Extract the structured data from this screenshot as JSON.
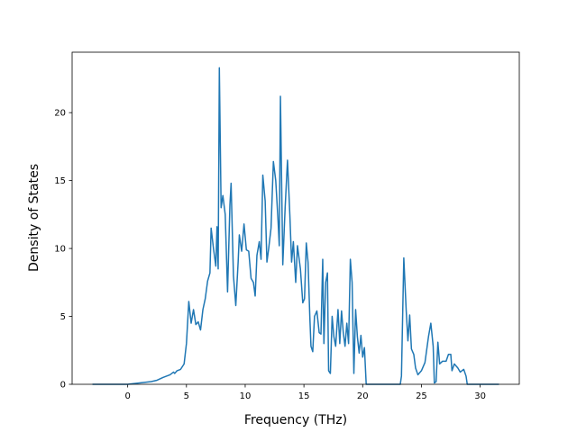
{
  "chart_data": {
    "type": "line",
    "x_label": "Frequency (THz)",
    "y_label": "Density of States",
    "x": [
      -3,
      -2,
      -1,
      0,
      0.5,
      1,
      1.5,
      2,
      2.5,
      3,
      3.3,
      3.6,
      3.9,
      4.0,
      4.2,
      4.5,
      4.8,
      5.0,
      5.2,
      5.4,
      5.6,
      5.8,
      6.0,
      6.2,
      6.4,
      6.6,
      6.8,
      7.0,
      7.1,
      7.3,
      7.5,
      7.6,
      7.7,
      7.8,
      7.95,
      8.1,
      8.3,
      8.5,
      8.7,
      8.8,
      9.0,
      9.2,
      9.4,
      9.5,
      9.7,
      9.9,
      10.1,
      10.3,
      10.5,
      10.7,
      10.85,
      11.0,
      11.2,
      11.35,
      11.5,
      11.7,
      11.85,
      12.0,
      12.2,
      12.4,
      12.6,
      12.8,
      12.9,
      13.0,
      13.2,
      13.4,
      13.6,
      13.8,
      13.95,
      14.1,
      14.3,
      14.45,
      14.7,
      14.9,
      15.05,
      15.2,
      15.35,
      15.5,
      15.6,
      15.75,
      15.9,
      16.1,
      16.3,
      16.45,
      16.6,
      16.7,
      16.85,
      17.0,
      17.1,
      17.25,
      17.4,
      17.55,
      17.7,
      17.9,
      18.05,
      18.2,
      18.35,
      18.5,
      18.65,
      18.8,
      18.95,
      19.1,
      19.25,
      19.4,
      19.55,
      19.7,
      19.85,
      20.0,
      20.15,
      20.3,
      21.0,
      22.0,
      23.2,
      23.3,
      23.5,
      23.7,
      23.85,
      24.0,
      24.15,
      24.35,
      24.5,
      24.7,
      25.0,
      25.3,
      25.6,
      25.8,
      26.0,
      26.1,
      26.25,
      26.4,
      26.55,
      26.8,
      27.1,
      27.3,
      27.5,
      27.6,
      27.8,
      28.1,
      28.3,
      28.6,
      28.8,
      28.9,
      30,
      31.6
    ],
    "values": [
      0,
      0,
      0,
      0,
      0.05,
      0.1,
      0.15,
      0.2,
      0.3,
      0.5,
      0.6,
      0.7,
      0.9,
      0.8,
      1.0,
      1.1,
      1.5,
      3.0,
      6.1,
      4.5,
      5.5,
      4.4,
      4.6,
      4.0,
      5.5,
      6.3,
      7.6,
      8.2,
      11.5,
      10.0,
      8.7,
      11.6,
      8.5,
      23.3,
      13.0,
      13.9,
      12.5,
      6.8,
      13.2,
      14.8,
      8.0,
      5.8,
      9.0,
      11.0,
      9.8,
      11.8,
      9.9,
      9.8,
      7.8,
      7.5,
      6.5,
      9.5,
      10.5,
      9.2,
      15.4,
      13.5,
      9.0,
      10.0,
      11.5,
      16.4,
      15.0,
      12.0,
      10.2,
      21.2,
      8.8,
      13.0,
      16.5,
      12.5,
      9.0,
      10.5,
      7.5,
      10.2,
      8.5,
      6.0,
      6.3,
      10.4,
      9.0,
      5.0,
      2.8,
      2.4,
      5.0,
      5.4,
      3.8,
      3.7,
      9.2,
      3.0,
      7.5,
      8.2,
      1.0,
      0.8,
      5.0,
      3.5,
      2.8,
      5.5,
      3.0,
      5.4,
      3.8,
      2.8,
      4.5,
      3.0,
      9.2,
      7.5,
      0.8,
      5.5,
      3.5,
      2.3,
      3.6,
      2.0,
      2.7,
      0,
      0,
      0,
      0,
      0.6,
      9.3,
      5.5,
      3.2,
      5.1,
      2.6,
      2.2,
      1.2,
      0.7,
      1.0,
      1.6,
      3.5,
      4.5,
      2.8,
      0.1,
      0.2,
      3.1,
      1.5,
      1.7,
      1.7,
      2.2,
      2.2,
      1.0,
      1.5,
      1.2,
      0.9,
      1.1,
      0.6,
      0,
      0,
      0
    ],
    "color": "#1f77b4",
    "xlim": [
      -4.73,
      33.33
    ],
    "xticks": [
      0,
      5,
      10,
      15,
      20,
      25,
      30
    ],
    "ylim": [
      0,
      24.45
    ],
    "yticks": [
      0,
      5,
      10,
      15,
      20
    ],
    "grid": false
  }
}
